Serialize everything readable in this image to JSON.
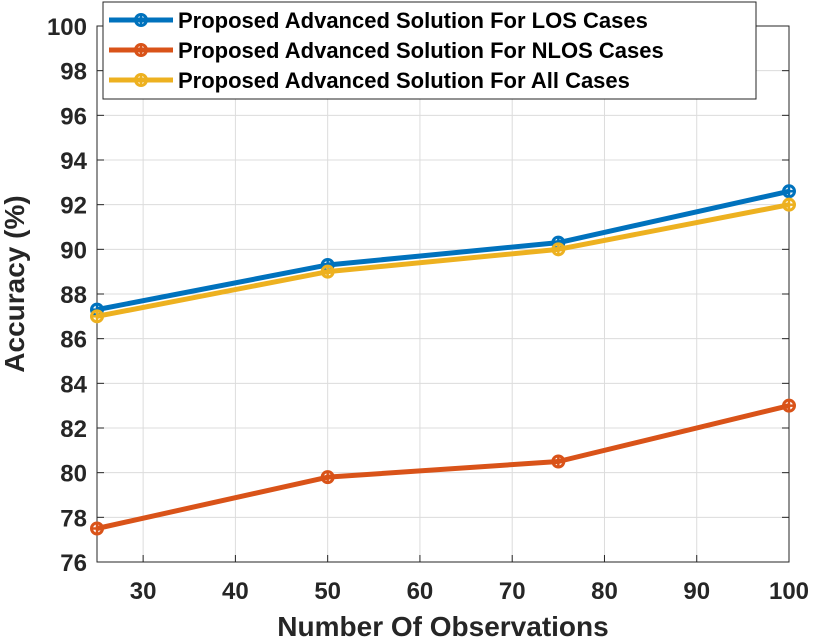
{
  "chart_data": {
    "type": "line",
    "xlabel": "Number Of Observations",
    "ylabel": "Accuracy (%)",
    "xlim": [
      25,
      100
    ],
    "ylim": [
      76,
      100
    ],
    "xticks": [
      30,
      40,
      50,
      60,
      70,
      80,
      90,
      100
    ],
    "yticks": [
      76,
      78,
      80,
      82,
      84,
      86,
      88,
      90,
      92,
      94,
      96,
      98,
      100
    ],
    "grid": true,
    "legend_position": "top",
    "x": [
      25,
      50,
      75,
      100
    ],
    "series": [
      {
        "name": "Proposed Advanced Solution For LOS Cases",
        "values": [
          87.3,
          89.3,
          90.3,
          92.6
        ],
        "color": "#0072BD"
      },
      {
        "name": "Proposed Advanced Solution For NLOS Cases",
        "values": [
          77.5,
          79.8,
          80.5,
          83.0
        ],
        "color": "#D95319"
      },
      {
        "name": "Proposed Advanced Solution For All Cases",
        "values": [
          87.0,
          89.0,
          90.0,
          92.0
        ],
        "color": "#EDB120"
      }
    ]
  }
}
